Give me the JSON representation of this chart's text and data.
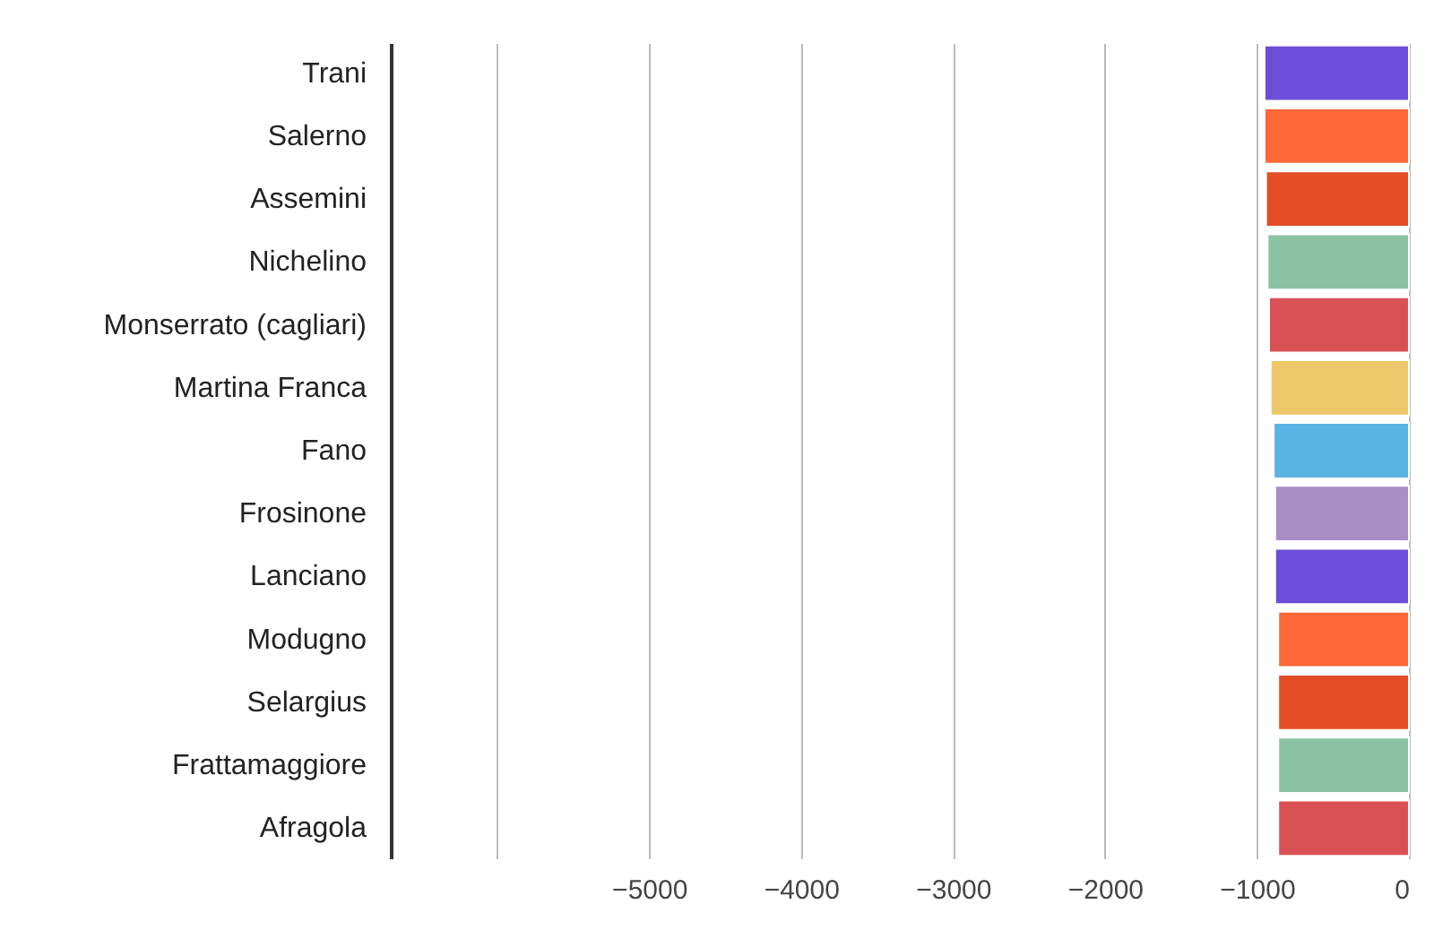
{
  "chart_data": {
    "type": "bar",
    "orientation": "horizontal",
    "categories": [
      "Trani",
      "Salerno",
      "Assemini",
      "Nichelino",
      "Monserrato (cagliari)",
      "Martina Franca",
      "Fano",
      "Frosinone",
      "Lanciano",
      "Modugno",
      "Selargius",
      "Frattamaggiore",
      "Afragola"
    ],
    "values": [
      -950,
      -950,
      -940,
      -930,
      -920,
      -910,
      -890,
      -880,
      -880,
      -860,
      -860,
      -860,
      -860
    ],
    "colors": [
      "#6b4fd8",
      "#fd6837",
      "#e24d25",
      "#8cc2a4",
      "#da5155",
      "#ecc86a",
      "#5bb3e4",
      "#a98dc6",
      "#6b4fd8",
      "#fd6837",
      "#e24d25",
      "#8cc2a4",
      "#da5155"
    ],
    "xlim": [
      -6700,
      0
    ],
    "xticks": [
      {
        "value": -6000,
        "label": null
      },
      -5000,
      -4000,
      -3000,
      -2000,
      -1000,
      0
    ],
    "grid": "x",
    "legend": false
  }
}
